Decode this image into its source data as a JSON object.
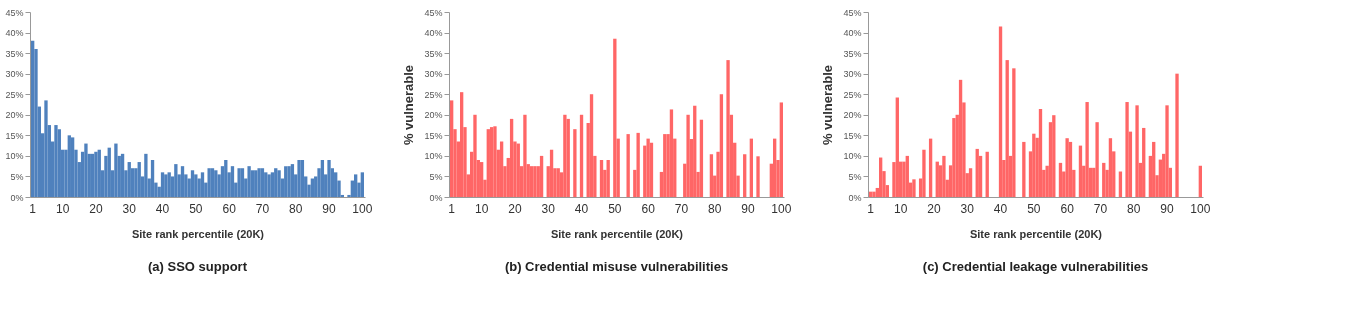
{
  "chart_data": [
    {
      "type": "bar",
      "title": "(a) SSO support",
      "xlabel": "Site rank percentile (20K)",
      "color": "#4f81bd",
      "categories": [
        "1",
        null,
        null,
        null,
        null,
        null,
        null,
        null,
        null,
        "10",
        null,
        null,
        null,
        null,
        null,
        null,
        null,
        null,
        null,
        "20",
        null,
        null,
        null,
        null,
        null,
        null,
        null,
        null,
        null,
        "30",
        null,
        null,
        null,
        null,
        null,
        null,
        null,
        null,
        null,
        "40",
        null,
        null,
        null,
        null,
        null,
        null,
        null,
        null,
        null,
        "50",
        null,
        null,
        null,
        null,
        null,
        null,
        null,
        null,
        null,
        "60",
        null,
        null,
        null,
        null,
        null,
        null,
        null,
        null,
        null,
        "70",
        null,
        null,
        null,
        null,
        null,
        null,
        null,
        null,
        null,
        "80",
        null,
        null,
        null,
        null,
        null,
        null,
        null,
        null,
        null,
        "90",
        null,
        null,
        null,
        null,
        null,
        null,
        null,
        null,
        null,
        "100"
      ],
      "values": [
        38,
        36,
        22,
        15.5,
        23.5,
        17.5,
        13.5,
        17.5,
        16.5,
        11.5,
        11.5,
        15,
        14.5,
        11.5,
        8.5,
        11,
        13,
        10.5,
        10.5,
        11,
        11.5,
        6.5,
        10,
        12,
        6.5,
        13,
        10,
        10.5,
        6.5,
        8.5,
        7,
        7,
        8.5,
        5,
        10.5,
        4.5,
        9,
        3.5,
        2.5,
        6,
        5.5,
        6,
        5,
        8,
        5.5,
        7.5,
        5.5,
        4.5,
        6.5,
        5.5,
        4.5,
        6,
        3.5,
        7,
        7,
        6.5,
        5.5,
        7.5,
        9,
        6,
        7.5,
        3.5,
        7,
        7,
        4.5,
        7.5,
        6.5,
        6.5,
        7,
        7,
        6,
        5.5,
        6,
        7,
        6.5,
        4.5,
        7.5,
        7.5,
        8,
        5.5,
        9,
        9,
        5,
        3,
        4.5,
        5,
        7,
        9,
        5.5,
        9,
        7,
        6,
        4,
        0.5,
        null,
        0.5,
        4,
        5.5,
        3.5,
        6
      ],
      "ylim": [
        0,
        45
      ],
      "yticks": [
        {
          "value": 0,
          "label": "0%"
        },
        {
          "value": 5,
          "label": "5%"
        },
        {
          "value": 10,
          "label": "10%"
        },
        {
          "value": 15,
          "label": "15%"
        },
        {
          "value": 20,
          "label": "20%"
        },
        {
          "value": 25,
          "label": "25%"
        },
        {
          "value": 30,
          "label": "30%"
        },
        {
          "value": 35,
          "label": "35%"
        },
        {
          "value": 40,
          "label": "40%"
        },
        {
          "value": 45,
          "label": "45%"
        }
      ],
      "grid": false
    },
    {
      "type": "bar",
      "title": "(b) Credential misuse vulnerabilities",
      "xlabel": "Site rank percentile (20K)",
      "ylabel": "% vulnerable",
      "color": "#ff6666",
      "categories": [
        "1",
        null,
        null,
        null,
        null,
        null,
        null,
        null,
        null,
        "10",
        null,
        null,
        null,
        null,
        null,
        null,
        null,
        null,
        null,
        "20",
        null,
        null,
        null,
        null,
        null,
        null,
        null,
        null,
        null,
        "30",
        null,
        null,
        null,
        null,
        null,
        null,
        null,
        null,
        null,
        "40",
        null,
        null,
        null,
        null,
        null,
        null,
        null,
        null,
        null,
        "50",
        null,
        null,
        null,
        null,
        null,
        null,
        null,
        null,
        null,
        "60",
        null,
        null,
        null,
        null,
        null,
        null,
        null,
        null,
        null,
        "70",
        null,
        null,
        null,
        null,
        null,
        null,
        null,
        null,
        null,
        "80",
        null,
        null,
        null,
        null,
        null,
        null,
        null,
        null,
        null,
        "90",
        null,
        null,
        null,
        null,
        null,
        null,
        null,
        null,
        null,
        "100"
      ],
      "values": [
        23.5,
        16.5,
        13.5,
        25.5,
        17,
        5.5,
        11,
        20,
        9,
        8.5,
        4.2,
        16.5,
        17,
        17.2,
        11.5,
        13.5,
        7.5,
        9.5,
        19,
        13.5,
        13,
        7.5,
        20,
        8,
        7.5,
        7.5,
        7.5,
        10,
        null,
        7.5,
        11.5,
        7,
        7,
        6,
        20,
        19,
        null,
        16.5,
        null,
        20,
        null,
        18,
        25,
        10,
        null,
        9,
        6.6,
        9,
        null,
        38.5,
        14.2,
        null,
        null,
        15.3,
        null,
        6.6,
        15.6,
        null,
        12.5,
        14.2,
        13.2,
        null,
        null,
        6.1,
        15.3,
        15.3,
        21.3,
        14.2,
        null,
        null,
        8.1,
        20,
        14.1,
        22.2,
        6.1,
        18.8,
        null,
        null,
        10.4,
        5.2,
        11,
        25,
        null,
        33.3,
        20,
        13.2,
        5.2,
        null,
        10.4,
        null,
        14.2,
        null,
        9.9,
        null,
        null,
        null,
        8.1,
        14.2,
        9,
        23
      ],
      "ylim": [
        0,
        45
      ],
      "yticks": [
        {
          "value": 0,
          "label": "0%"
        },
        {
          "value": 5,
          "label": "5%"
        },
        {
          "value": 10,
          "label": "10%"
        },
        {
          "value": 15,
          "label": "15%"
        },
        {
          "value": 20,
          "label": "20%"
        },
        {
          "value": 25,
          "label": "25%"
        },
        {
          "value": 30,
          "label": "30%"
        },
        {
          "value": 35,
          "label": "35%"
        },
        {
          "value": 40,
          "label": "40%"
        },
        {
          "value": 45,
          "label": "45%"
        }
      ],
      "grid": false
    },
    {
      "type": "bar",
      "title": "(c) Credential leakage vulnerabilities",
      "xlabel": "Site rank percentile (20K)",
      "ylabel": "% vulnerable",
      "color": "#ff6666",
      "categories": [
        "1",
        null,
        null,
        null,
        null,
        null,
        null,
        null,
        null,
        "10",
        null,
        null,
        null,
        null,
        null,
        null,
        null,
        null,
        null,
        "20",
        null,
        null,
        null,
        null,
        null,
        null,
        null,
        null,
        null,
        "30",
        null,
        null,
        null,
        null,
        null,
        null,
        null,
        null,
        null,
        "40",
        null,
        null,
        null,
        null,
        null,
        null,
        null,
        null,
        null,
        "50",
        null,
        null,
        null,
        null,
        null,
        null,
        null,
        null,
        null,
        "60",
        null,
        null,
        null,
        null,
        null,
        null,
        null,
        null,
        null,
        "70",
        null,
        null,
        null,
        null,
        null,
        null,
        null,
        null,
        null,
        "80",
        null,
        null,
        null,
        null,
        null,
        null,
        null,
        null,
        null,
        "90",
        null,
        null,
        null,
        null,
        null,
        null,
        null,
        null,
        null,
        "100"
      ],
      "values": [
        1.3,
        1.3,
        2.2,
        9.6,
        6.3,
        2.9,
        null,
        8.5,
        24.2,
        8.6,
        8.6,
        10,
        3.5,
        4.3,
        null,
        4.5,
        11.5,
        null,
        14.2,
        null,
        8.6,
        7.7,
        10,
        4.2,
        7.7,
        19.2,
        20,
        28.5,
        23,
        5.8,
        7,
        null,
        11.7,
        10,
        null,
        11,
        null,
        null,
        null,
        41.5,
        9,
        33.3,
        10,
        31.3,
        null,
        null,
        13.4,
        null,
        11.1,
        15.4,
        14.4,
        21.4,
        6.6,
        7.6,
        18.2,
        19.9,
        null,
        8.3,
        6.2,
        14.3,
        13.4,
        6.6,
        null,
        12.5,
        7.6,
        23.1,
        7.1,
        7.1,
        18.2,
        null,
        8.3,
        6.6,
        14.3,
        11.1,
        null,
        6.2,
        null,
        23.1,
        15.9,
        null,
        22.3,
        8.3,
        16.8,
        null,
        10,
        13.4,
        5.3,
        9.1,
        10.5,
        22.3,
        7.1,
        null,
        30,
        null,
        null,
        null,
        null,
        null,
        null,
        7.6
      ],
      "ylim": [
        0,
        45
      ],
      "yticks": [
        {
          "value": 0,
          "label": "0%"
        },
        {
          "value": 5,
          "label": "5%"
        },
        {
          "value": 10,
          "label": "10%"
        },
        {
          "value": 15,
          "label": "15%"
        },
        {
          "value": 20,
          "label": "20%"
        },
        {
          "value": 25,
          "label": "25%"
        },
        {
          "value": 30,
          "label": "30%"
        },
        {
          "value": 35,
          "label": "35%"
        },
        {
          "value": 40,
          "label": "40%"
        },
        {
          "value": 45,
          "label": "45%"
        }
      ],
      "grid": false
    }
  ]
}
